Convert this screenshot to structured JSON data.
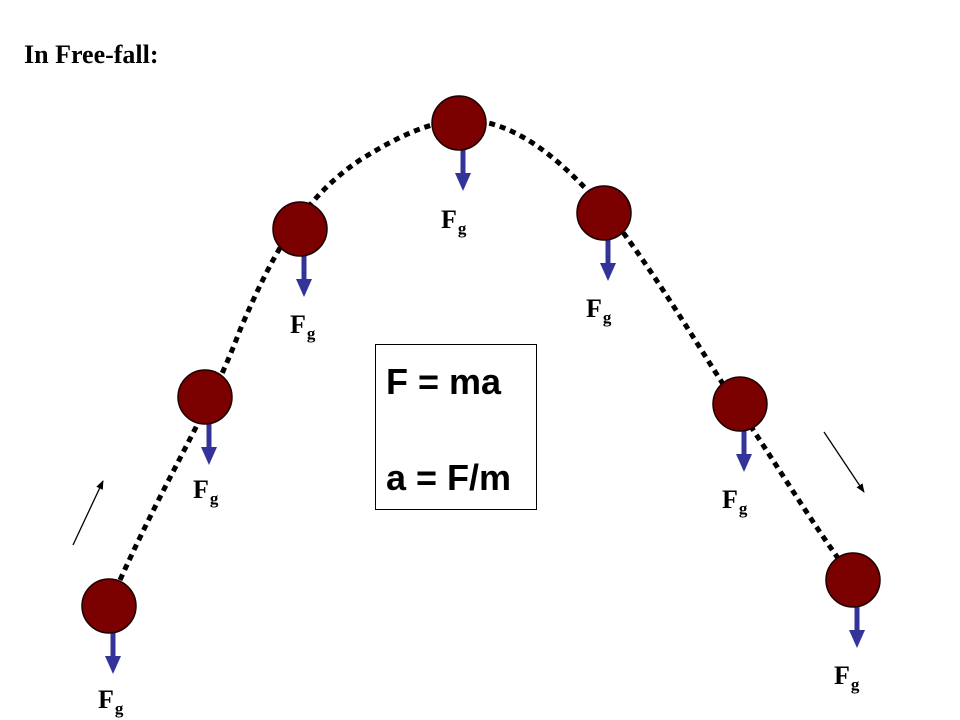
{
  "title": "In Free-fall:",
  "force_label": {
    "main": "F",
    "sub": "g"
  },
  "equations": {
    "line1": "F = ma",
    "line2": "a = F/m"
  },
  "colors": {
    "ball_fill": "#7b0000",
    "ball_stroke": "#1a0000",
    "force_arrow": "#333399",
    "trajectory": "#000000",
    "motion_arrow": "#000000"
  },
  "ball_count": 7
}
